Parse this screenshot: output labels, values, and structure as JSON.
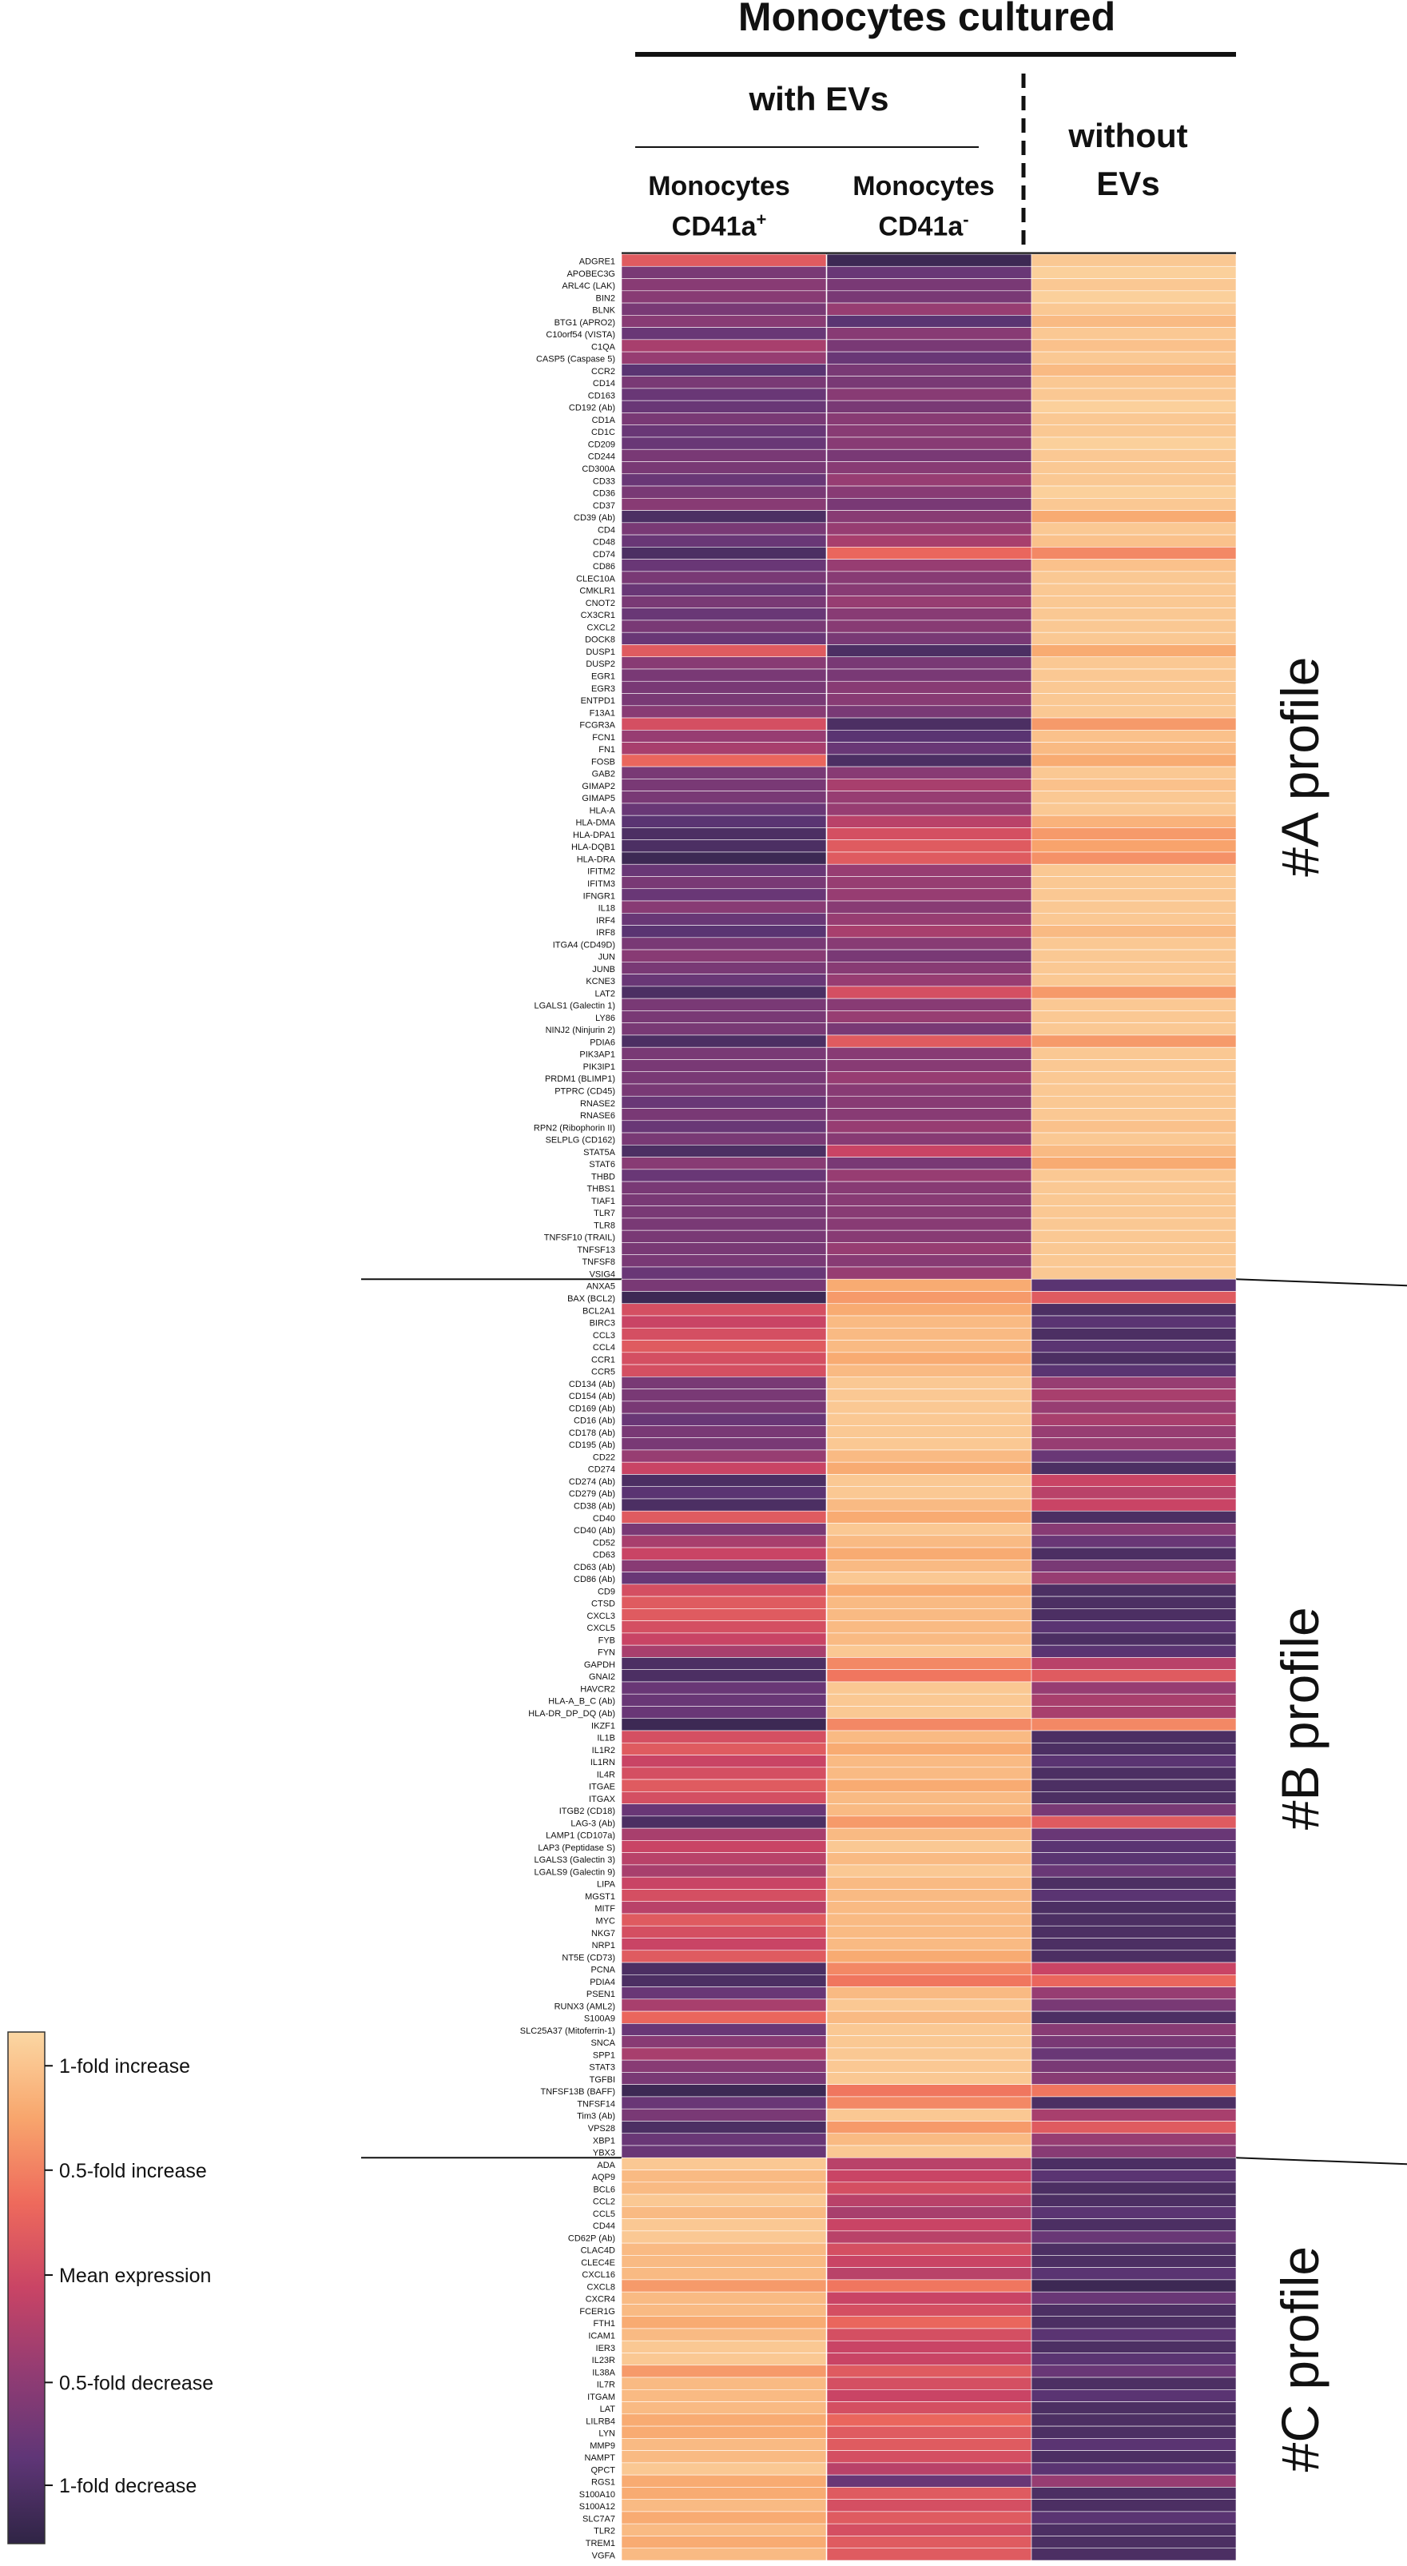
{
  "header": {
    "title": "Monocytes cultured",
    "with_evs": "with EVs",
    "col1_line1": "Monocytes",
    "col1_line2": "CD41a",
    "col1_sup": "+",
    "col2_line1": "Monocytes",
    "col2_line2": "CD41a",
    "col2_sup": "-",
    "col3_line1": "without",
    "col3_line2": "EVs"
  },
  "colorbar": {
    "labels": [
      "1-fold increase",
      "0.5-fold increase",
      "Mean expression",
      "0.5-fold decrease",
      "1-fold decrease"
    ],
    "colors": [
      "#fbd7a3",
      "#f8a66d",
      "#ee6a5c",
      "#c94465",
      "#923c73",
      "#5f3677",
      "#2f2445"
    ]
  },
  "chart_data": {
    "type": "heatmap",
    "columns": [
      "Monocytes CD41a+",
      "Monocytes CD41a-",
      "without EVs"
    ],
    "scale": {
      "min": -1,
      "max": 1,
      "min_label": "1-fold decrease",
      "max_label": "1-fold increase"
    },
    "profiles": [
      {
        "label": "#A profile",
        "genes": [
          "ADGRE1",
          "APOBEC3G",
          "ARL4C (LAK)",
          "BIN2",
          "BLNK",
          "BTG1 (APRO2)",
          "C10orf54 (VISTA)",
          "C1QA",
          "CASP5 (Caspase 5)",
          "CCR2",
          "CD14",
          "CD163",
          "CD192 (Ab)",
          "CD1A",
          "CD1C",
          "CD209",
          "CD244",
          "CD300A",
          "CD33",
          "CD36",
          "CD37",
          "CD39 (Ab)",
          "CD4",
          "CD48",
          "CD74",
          "CD86",
          "CLEC10A",
          "CMKLR1",
          "CNOT2",
          "CX3CR1",
          "CXCL2",
          "DOCK8",
          "DUSP1",
          "DUSP2",
          "EGR1",
          "EGR3",
          "ENTPD1",
          "F13A1",
          "FCGR3A",
          "FCN1",
          "FN1",
          "FOSB",
          "GAB2",
          "GIMAP2",
          "GIMAP5",
          "HLA-A",
          "HLA-DMA",
          "HLA-DPA1",
          "HLA-DQB1",
          "HLA-DRA",
          "IFITM2",
          "IFITM3",
          "IFNGR1",
          "IL18",
          "IRF4",
          "IRF8",
          "ITGA4 (CD49D)",
          "JUN",
          "JUNB",
          "KCNE3",
          "LAT2",
          "LGALS1 (Galectin 1)",
          "LY86",
          "NINJ2 (Ninjurin 2)",
          "PDIA6",
          "PIK3AP1",
          "PIK3IP1",
          "PRDM1 (BLIMP1)",
          "PTPRC (CD45)",
          "RNASE2",
          "RNASE6",
          "RPN2 (Ribophorin II)",
          "SELPLG (CD162)",
          "STAT5A",
          "STAT6",
          "THBD",
          "THBS1",
          "TIAF1",
          "TLR7",
          "TLR8",
          "TNFSF10 (TRAIL)",
          "TNFSF13",
          "TNFSF8",
          "VSIG4"
        ],
        "values": [
          [
            0.2,
            -0.9,
            0.9
          ],
          [
            -0.5,
            -0.6,
            0.95
          ],
          [
            -0.4,
            -0.5,
            0.9
          ],
          [
            -0.4,
            -0.5,
            0.95
          ],
          [
            -0.5,
            -0.3,
            0.9
          ],
          [
            -0.4,
            -0.7,
            0.8
          ],
          [
            -0.6,
            -0.4,
            0.9
          ],
          [
            -0.2,
            -0.5,
            0.85
          ],
          [
            -0.3,
            -0.6,
            0.9
          ],
          [
            -0.7,
            -0.5,
            0.8
          ],
          [
            -0.5,
            -0.5,
            0.9
          ],
          [
            -0.6,
            -0.4,
            0.9
          ],
          [
            -0.6,
            -0.5,
            0.95
          ],
          [
            -0.5,
            -0.4,
            0.9
          ],
          [
            -0.6,
            -0.4,
            0.9
          ],
          [
            -0.6,
            -0.4,
            0.95
          ],
          [
            -0.5,
            -0.5,
            0.9
          ],
          [
            -0.5,
            -0.4,
            0.9
          ],
          [
            -0.6,
            -0.3,
            0.9
          ],
          [
            -0.5,
            -0.4,
            0.95
          ],
          [
            -0.4,
            -0.5,
            0.9
          ],
          [
            -0.8,
            -0.4,
            0.7
          ],
          [
            -0.5,
            -0.3,
            0.9
          ],
          [
            -0.6,
            -0.2,
            0.85
          ],
          [
            -0.8,
            0.3,
            0.5
          ],
          [
            -0.6,
            -0.3,
            0.85
          ],
          [
            -0.5,
            -0.4,
            0.9
          ],
          [
            -0.6,
            -0.4,
            0.9
          ],
          [
            -0.5,
            -0.3,
            0.9
          ],
          [
            -0.6,
            -0.4,
            0.9
          ],
          [
            -0.5,
            -0.4,
            0.9
          ],
          [
            -0.6,
            -0.5,
            0.9
          ],
          [
            0.2,
            -0.8,
            0.7
          ],
          [
            -0.4,
            -0.5,
            0.9
          ],
          [
            -0.5,
            -0.5,
            0.9
          ],
          [
            -0.5,
            -0.4,
            0.9
          ],
          [
            -0.5,
            -0.4,
            0.9
          ],
          [
            -0.4,
            -0.5,
            0.9
          ],
          [
            0.1,
            -0.8,
            0.6
          ],
          [
            -0.3,
            -0.7,
            0.85
          ],
          [
            -0.2,
            -0.6,
            0.8
          ],
          [
            0.3,
            -0.8,
            0.7
          ],
          [
            -0.5,
            -0.4,
            0.9
          ],
          [
            -0.5,
            -0.2,
            0.85
          ],
          [
            -0.5,
            -0.3,
            0.9
          ],
          [
            -0.6,
            -0.3,
            0.9
          ],
          [
            -0.7,
            -0.1,
            0.75
          ],
          [
            -0.8,
            0.1,
            0.6
          ],
          [
            -0.8,
            0.2,
            0.65
          ],
          [
            -0.9,
            0.2,
            0.55
          ],
          [
            -0.6,
            -0.3,
            0.9
          ],
          [
            -0.5,
            -0.3,
            0.9
          ],
          [
            -0.6,
            -0.3,
            0.9
          ],
          [
            -0.4,
            -0.4,
            0.9
          ],
          [
            -0.6,
            -0.3,
            0.9
          ],
          [
            -0.7,
            -0.2,
            0.8
          ],
          [
            -0.5,
            -0.4,
            0.9
          ],
          [
            -0.4,
            -0.5,
            0.9
          ],
          [
            -0.5,
            -0.4,
            0.9
          ],
          [
            -0.6,
            -0.3,
            0.9
          ],
          [
            -0.8,
            0.1,
            0.6
          ],
          [
            -0.5,
            -0.4,
            0.9
          ],
          [
            -0.5,
            -0.3,
            0.9
          ],
          [
            -0.5,
            -0.5,
            0.9
          ],
          [
            -0.8,
            0.2,
            0.6
          ],
          [
            -0.5,
            -0.4,
            0.9
          ],
          [
            -0.5,
            -0.4,
            0.9
          ],
          [
            -0.5,
            -0.3,
            0.9
          ],
          [
            -0.5,
            -0.4,
            0.9
          ],
          [
            -0.6,
            -0.4,
            0.9
          ],
          [
            -0.5,
            -0.4,
            0.9
          ],
          [
            -0.6,
            -0.3,
            0.85
          ],
          [
            -0.5,
            -0.4,
            0.9
          ],
          [
            -0.8,
            0.0,
            0.8
          ],
          [
            -0.4,
            -0.5,
            0.7
          ],
          [
            -0.6,
            -0.3,
            0.9
          ],
          [
            -0.5,
            -0.4,
            0.9
          ],
          [
            -0.5,
            -0.4,
            0.9
          ],
          [
            -0.5,
            -0.4,
            0.9
          ],
          [
            -0.5,
            -0.4,
            0.9
          ],
          [
            -0.5,
            -0.4,
            0.9
          ],
          [
            -0.5,
            -0.3,
            0.9
          ],
          [
            -0.5,
            -0.4,
            0.9
          ],
          [
            -0.6,
            -0.3,
            0.9
          ]
        ]
      },
      {
        "label": "#B profile",
        "genes": [
          "ANXA5",
          "BAX (BCL2)",
          "BCL2A1",
          "BIRC3",
          "CCL3",
          "CCL4",
          "CCR1",
          "CCR5",
          "CD134 (Ab)",
          "CD154 (Ab)",
          "CD169 (Ab)",
          "CD16 (Ab)",
          "CD178 (Ab)",
          "CD195 (Ab)",
          "CD22",
          "CD274",
          "CD274 (Ab)",
          "CD279 (Ab)",
          "CD38 (Ab)",
          "CD40",
          "CD40 (Ab)",
          "CD52",
          "CD63",
          "CD63 (Ab)",
          "CD86 (Ab)",
          "CD9",
          "CTSD",
          "CXCL3",
          "CXCL5",
          "FYB",
          "FYN",
          "GAPDH",
          "GNAI2",
          "HAVCR2",
          "HLA-A_B_C (Ab)",
          "HLA-DR_DP_DQ (Ab)",
          "IKZF1",
          "IL1B",
          "IL1R2",
          "IL1RN",
          "IL4R",
          "ITGAE",
          "ITGAX",
          "ITGB2 (CD18)",
          "LAG-3 (Ab)",
          "LAMP1 (CD107a)",
          "LAP3 (Peptidase S)",
          "LGALS3 (Galectin 3)",
          "LGALS9 (Galectin 9)",
          "LIPA",
          "MGST1",
          "MITF",
          "MYC",
          "NKG7",
          "NRP1",
          "NT5E (CD73)",
          "PCNA",
          "PDIA4",
          "PSEN1",
          "RUNX3 (AML2)",
          "S100A9",
          "SLC25A37 (Mitoferrin-1)",
          "SNCA",
          "SPP1",
          "STAT3",
          "TGFBI",
          "TNFSF13B (BAFF)",
          "TNFSF14",
          "Tim3 (Ab)",
          "VPS28",
          "XBP1",
          "YBX3"
        ],
        "values": [
          [
            -0.5,
            0.7,
            -0.7
          ],
          [
            -0.9,
            0.6,
            0.2
          ],
          [
            0.1,
            0.7,
            -0.8
          ],
          [
            0.0,
            0.8,
            -0.7
          ],
          [
            0.1,
            0.8,
            -0.8
          ],
          [
            0.2,
            0.8,
            -0.7
          ],
          [
            0.1,
            0.7,
            -0.8
          ],
          [
            0.1,
            0.8,
            -0.7
          ],
          [
            -0.5,
            0.9,
            -0.3
          ],
          [
            -0.5,
            0.9,
            -0.2
          ],
          [
            -0.5,
            0.9,
            -0.3
          ],
          [
            -0.6,
            0.9,
            -0.2
          ],
          [
            -0.5,
            0.9,
            -0.3
          ],
          [
            -0.5,
            0.9,
            -0.3
          ],
          [
            -0.3,
            0.8,
            -0.6
          ],
          [
            0.0,
            0.7,
            -0.8
          ],
          [
            -0.8,
            0.9,
            0.0
          ],
          [
            -0.7,
            0.9,
            -0.1
          ],
          [
            -0.8,
            0.8,
            0.0
          ],
          [
            0.2,
            0.7,
            -0.8
          ],
          [
            -0.5,
            0.9,
            -0.4
          ],
          [
            -0.2,
            0.8,
            -0.6
          ],
          [
            0.0,
            0.7,
            -0.8
          ],
          [
            -0.4,
            0.8,
            -0.5
          ],
          [
            -0.6,
            0.9,
            -0.3
          ],
          [
            0.1,
            0.7,
            -0.8
          ],
          [
            0.2,
            0.8,
            -0.8
          ],
          [
            0.2,
            0.8,
            -0.8
          ],
          [
            0.1,
            0.8,
            -0.7
          ],
          [
            0.0,
            0.8,
            -0.8
          ],
          [
            -0.2,
            0.9,
            -0.7
          ],
          [
            -0.8,
            0.5,
            -0.1
          ],
          [
            -0.8,
            0.4,
            0.2
          ],
          [
            -0.6,
            0.9,
            -0.3
          ],
          [
            -0.6,
            0.9,
            -0.2
          ],
          [
            -0.6,
            0.9,
            -0.2
          ],
          [
            -0.9,
            0.5,
            0.5
          ],
          [
            0.1,
            0.8,
            -0.8
          ],
          [
            0.2,
            0.7,
            -0.8
          ],
          [
            0.0,
            0.8,
            -0.7
          ],
          [
            0.1,
            0.8,
            -0.8
          ],
          [
            0.2,
            0.7,
            -0.8
          ],
          [
            0.1,
            0.8,
            -0.8
          ],
          [
            -0.6,
            0.8,
            -0.5
          ],
          [
            -0.8,
            0.6,
            0.2
          ],
          [
            -0.2,
            0.8,
            -0.6
          ],
          [
            0.0,
            0.9,
            -0.7
          ],
          [
            -0.1,
            0.8,
            -0.7
          ],
          [
            -0.2,
            0.9,
            -0.6
          ],
          [
            0.0,
            0.8,
            -0.8
          ],
          [
            0.1,
            0.8,
            -0.7
          ],
          [
            -0.1,
            0.8,
            -0.8
          ],
          [
            0.2,
            0.8,
            -0.8
          ],
          [
            0.1,
            0.8,
            -0.8
          ],
          [
            0.0,
            0.8,
            -0.8
          ],
          [
            0.2,
            0.7,
            -0.8
          ],
          [
            -0.8,
            0.5,
            0.0
          ],
          [
            -0.8,
            0.4,
            0.3
          ],
          [
            -0.6,
            0.8,
            -0.3
          ],
          [
            -0.2,
            0.9,
            -0.5
          ],
          [
            0.3,
            0.8,
            -0.8
          ],
          [
            -0.6,
            0.9,
            -0.4
          ],
          [
            -0.4,
            0.9,
            -0.5
          ],
          [
            -0.2,
            0.9,
            -0.6
          ],
          [
            -0.4,
            0.9,
            -0.5
          ],
          [
            -0.5,
            0.9,
            -0.4
          ],
          [
            -0.9,
            0.4,
            0.4
          ],
          [
            -0.6,
            0.5,
            -0.8
          ],
          [
            -0.5,
            0.9,
            -0.2
          ],
          [
            -0.8,
            0.6,
            0.2
          ],
          [
            -0.6,
            0.8,
            -0.3
          ],
          [
            -0.6,
            0.9,
            -0.4
          ]
        ]
      },
      {
        "label": "#C profile",
        "genes": [
          "ADA",
          "AQP9",
          "BCL6",
          "CCL2",
          "CCL5",
          "CD44",
          "CD62P (Ab)",
          "CLAC4D",
          "CLEC4E",
          "CXCL16",
          "CXCL8",
          "CXCR4",
          "FCER1G",
          "FTH1",
          "ICAM1",
          "IER3",
          "IL23R",
          "IL38A",
          "IL7R",
          "ITGAM",
          "LAT",
          "LILRB4",
          "LYN",
          "MMP9",
          "NAMPT",
          "QPCT",
          "RGS1",
          "S100A10",
          "S100A12",
          "SLC7A7",
          "TLR2",
          "TREM1",
          "VGFA"
        ],
        "values": [
          [
            0.9,
            -0.1,
            -0.8
          ],
          [
            0.8,
            0.0,
            -0.7
          ],
          [
            0.8,
            0.1,
            -0.8
          ],
          [
            0.9,
            -0.1,
            -0.8
          ],
          [
            0.8,
            -0.2,
            -0.7
          ],
          [
            0.9,
            0.0,
            -0.8
          ],
          [
            0.9,
            -0.1,
            -0.6
          ],
          [
            0.8,
            0.1,
            -0.8
          ],
          [
            0.8,
            0.0,
            -0.8
          ],
          [
            0.8,
            -0.1,
            -0.7
          ],
          [
            0.6,
            0.4,
            -0.9
          ],
          [
            0.8,
            0.0,
            -0.6
          ],
          [
            0.8,
            0.1,
            -0.8
          ],
          [
            0.7,
            0.3,
            -0.8
          ],
          [
            0.8,
            0.1,
            -0.7
          ],
          [
            0.9,
            0.0,
            -0.8
          ],
          [
            0.9,
            0.0,
            -0.7
          ],
          [
            0.6,
            0.2,
            -0.6
          ],
          [
            0.8,
            0.1,
            -0.8
          ],
          [
            0.8,
            0.0,
            -0.7
          ],
          [
            0.8,
            0.1,
            -0.8
          ],
          [
            0.7,
            0.3,
            -0.8
          ],
          [
            0.7,
            0.2,
            -0.8
          ],
          [
            0.8,
            0.2,
            -0.7
          ],
          [
            0.8,
            0.1,
            -0.8
          ],
          [
            0.9,
            -0.1,
            -0.7
          ],
          [
            0.7,
            -0.6,
            -0.3
          ],
          [
            0.7,
            0.2,
            -0.8
          ],
          [
            0.8,
            0.1,
            -0.8
          ],
          [
            0.7,
            0.2,
            -0.7
          ],
          [
            0.8,
            0.1,
            -0.8
          ],
          [
            0.7,
            0.2,
            -0.8
          ],
          [
            0.8,
            0.2,
            -0.8
          ]
        ]
      }
    ]
  }
}
